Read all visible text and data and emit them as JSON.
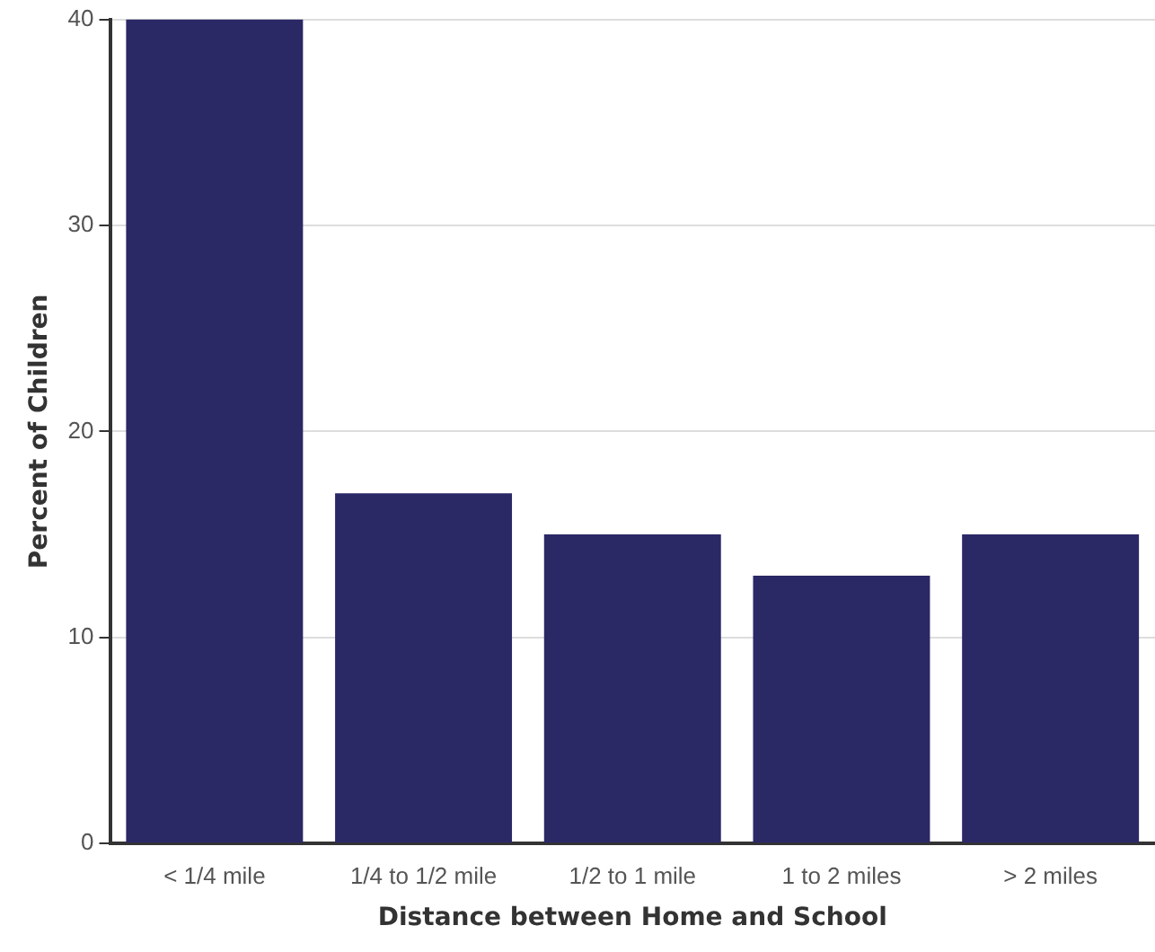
{
  "chart_data": {
    "type": "bar",
    "xlabel": "Distance between Home and School",
    "ylabel": "Percent of Children",
    "categories": [
      "< 1/4 mile",
      "1/4 to 1/2 mile",
      "1/2 to 1 mile",
      "1 to 2 miles",
      "> 2 miles"
    ],
    "values": [
      40,
      17,
      15,
      13,
      15
    ],
    "color": "#2b2866",
    "ylim": [
      0,
      40
    ],
    "yticks": [
      0,
      10,
      20,
      30,
      40
    ],
    "grid": "y"
  }
}
